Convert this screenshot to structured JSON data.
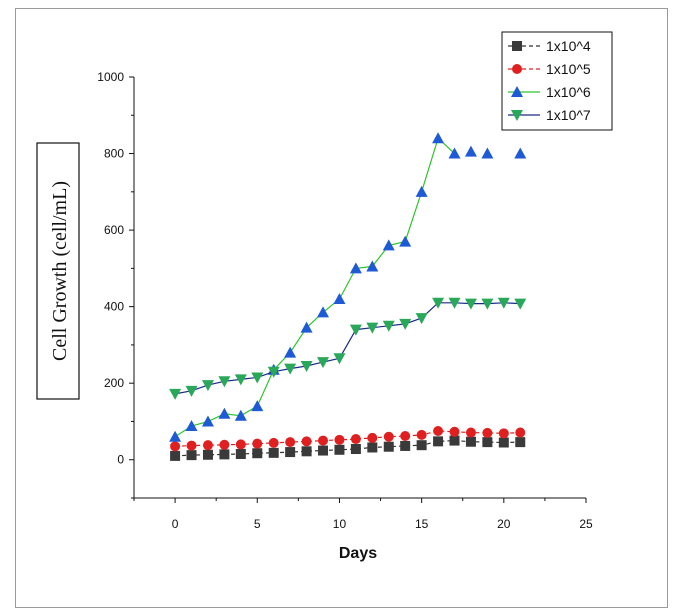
{
  "chart_data": {
    "type": "line",
    "xlabel": "Days",
    "ylabel": "Cell Growth (cell/mL)",
    "xlim": [
      -2.5,
      25
    ],
    "ylim": [
      -100,
      1000
    ],
    "xticks": [
      0,
      5,
      10,
      15,
      20,
      25
    ],
    "yticks": [
      0,
      200,
      400,
      600,
      800,
      1000
    ],
    "grid": false,
    "legend_position": "top-right",
    "series": [
      {
        "name": "1x10^4",
        "color": "#3a3a3a",
        "line_color": "#333333",
        "line_style": "dashed",
        "marker": "square",
        "points": [
          [
            0,
            10
          ],
          [
            1,
            12
          ],
          [
            2,
            13
          ],
          [
            3,
            14
          ],
          [
            4,
            15
          ],
          [
            5,
            17
          ],
          [
            6,
            18
          ],
          [
            7,
            20
          ],
          [
            8,
            22
          ],
          [
            9,
            24
          ],
          [
            10,
            26
          ],
          [
            11,
            28
          ],
          [
            12,
            32
          ],
          [
            13,
            34
          ],
          [
            14,
            36
          ],
          [
            15,
            38
          ],
          [
            16,
            48
          ],
          [
            17,
            50
          ],
          [
            18,
            47
          ],
          [
            19,
            46
          ],
          [
            20,
            45
          ],
          [
            21,
            46
          ]
        ]
      },
      {
        "name": "1x10^5",
        "color": "#e02020",
        "line_color": "#e02020",
        "line_style": "dashed",
        "marker": "circle",
        "points": [
          [
            0,
            35
          ],
          [
            1,
            37
          ],
          [
            2,
            38
          ],
          [
            3,
            39
          ],
          [
            4,
            40
          ],
          [
            5,
            42
          ],
          [
            6,
            44
          ],
          [
            7,
            46
          ],
          [
            8,
            48
          ],
          [
            9,
            50
          ],
          [
            10,
            52
          ],
          [
            11,
            54
          ],
          [
            12,
            57
          ],
          [
            13,
            60
          ],
          [
            14,
            62
          ],
          [
            15,
            65
          ],
          [
            16,
            75
          ],
          [
            17,
            73
          ],
          [
            18,
            71
          ],
          [
            19,
            70
          ],
          [
            20,
            69
          ],
          [
            21,
            71
          ]
        ]
      },
      {
        "name": "1x10^6",
        "color": "#1e5ad6",
        "line_color": "#2ec52e",
        "line_style": "solid",
        "marker": "triangle-up",
        "points": [
          [
            0,
            60
          ],
          [
            1,
            88
          ],
          [
            2,
            100
          ],
          [
            3,
            120
          ],
          [
            4,
            115
          ],
          [
            5,
            140
          ],
          [
            6,
            235
          ],
          [
            7,
            280
          ],
          [
            8,
            345
          ],
          [
            9,
            385
          ],
          [
            10,
            420
          ],
          [
            11,
            500
          ],
          [
            12,
            505
          ],
          [
            13,
            560
          ],
          [
            14,
            570
          ],
          [
            15,
            700
          ],
          [
            16,
            840
          ],
          [
            17,
            800
          ],
          [
            18,
            805
          ],
          [
            19,
            800
          ],
          [
            21,
            800
          ]
        ],
        "line_until_x": 17
      },
      {
        "name": "1x10^7",
        "color": "#2aa85a",
        "line_color": "#1c2a8a",
        "line_style": "solid",
        "marker": "triangle-down",
        "points": [
          [
            0,
            172
          ],
          [
            1,
            180
          ],
          [
            2,
            195
          ],
          [
            3,
            205
          ],
          [
            4,
            210
          ],
          [
            5,
            215
          ],
          [
            6,
            230
          ],
          [
            7,
            238
          ],
          [
            8,
            245
          ],
          [
            9,
            255
          ],
          [
            10,
            265
          ],
          [
            11,
            340
          ],
          [
            12,
            345
          ],
          [
            13,
            350
          ],
          [
            14,
            355
          ],
          [
            15,
            370
          ],
          [
            16,
            410
          ],
          [
            17,
            410
          ],
          [
            18,
            408
          ],
          [
            19,
            408
          ],
          [
            20,
            410
          ],
          [
            21,
            408
          ]
        ]
      }
    ]
  },
  "legend": {
    "labels": [
      "1x10^4",
      "1x10^5",
      "1x10^6",
      "1x10^7"
    ]
  }
}
